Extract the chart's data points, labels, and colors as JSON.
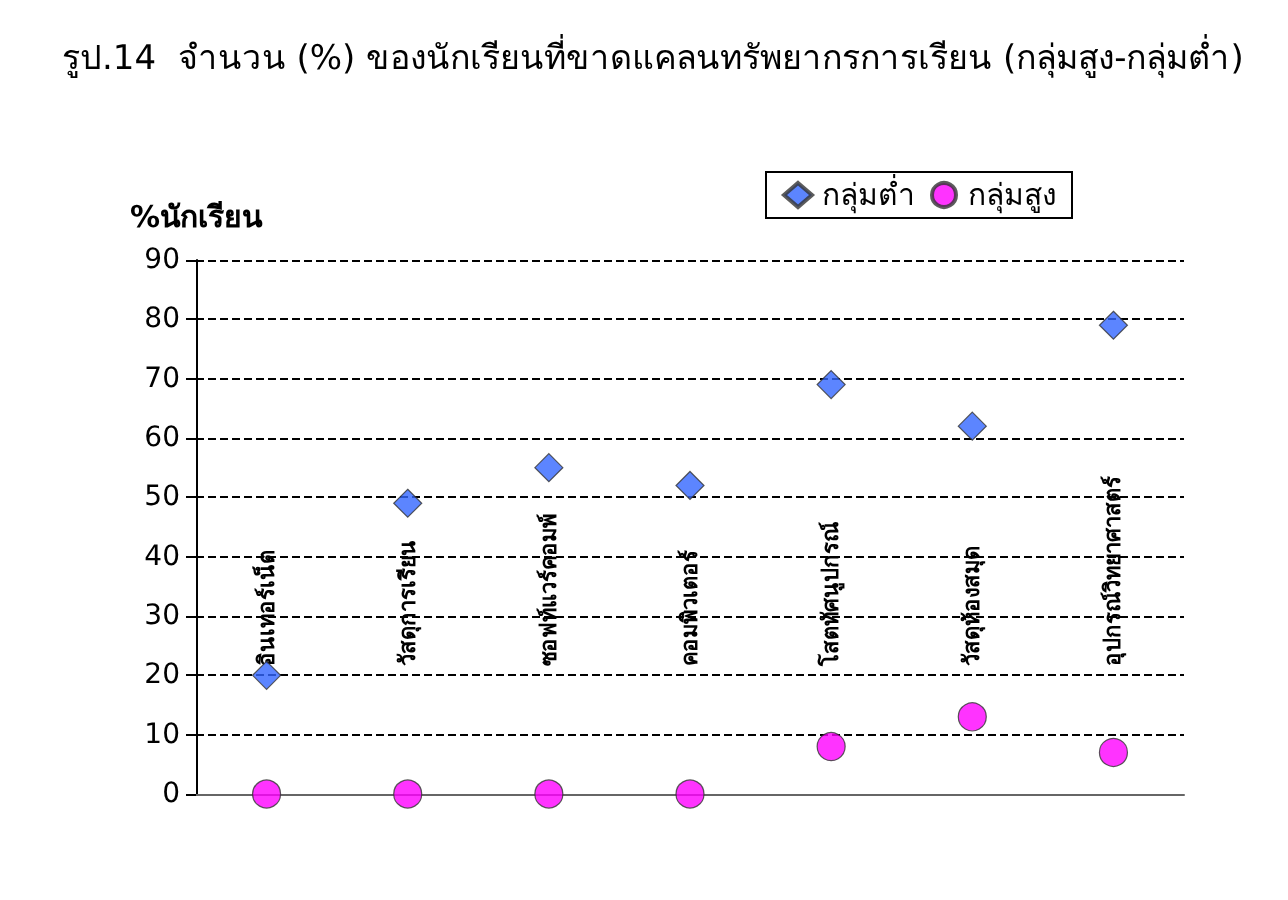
{
  "chart_data": {
    "type": "scatter",
    "title": "รูป.14  จำนวน (%) ของนักเรียนที่ขาดแคลนทรัพยากรการเรียน (กลุ่มสูง-กลุ่มต่ำ)",
    "ylabel": "%นักเรียน",
    "categories": [
      "อินเทอร์เน็ต",
      "วัสดุการเรียน",
      "ซอฟท์แวร์คอมพ์",
      "คอมพิวเตอร์",
      "โสตทัศนูปกรณ์",
      "วัสดุห้องสมุด",
      "อุปกรณ์วิทยาศาสตร์"
    ],
    "series": [
      {
        "name": "กลุ่มต่ำ",
        "color": "#3366ff",
        "marker": "diamond",
        "values": [
          20,
          49,
          55,
          52,
          69,
          62,
          79
        ]
      },
      {
        "name": "กลุ่มสูง",
        "color": "#ff00ff",
        "marker": "circle",
        "values": [
          0,
          0,
          0,
          0,
          8,
          13,
          7
        ]
      }
    ],
    "ylim": [
      0,
      90
    ],
    "yticks": [
      0,
      10,
      20,
      30,
      40,
      50,
      60,
      70,
      80,
      90
    ],
    "grid": "y",
    "legend": "top right"
  }
}
